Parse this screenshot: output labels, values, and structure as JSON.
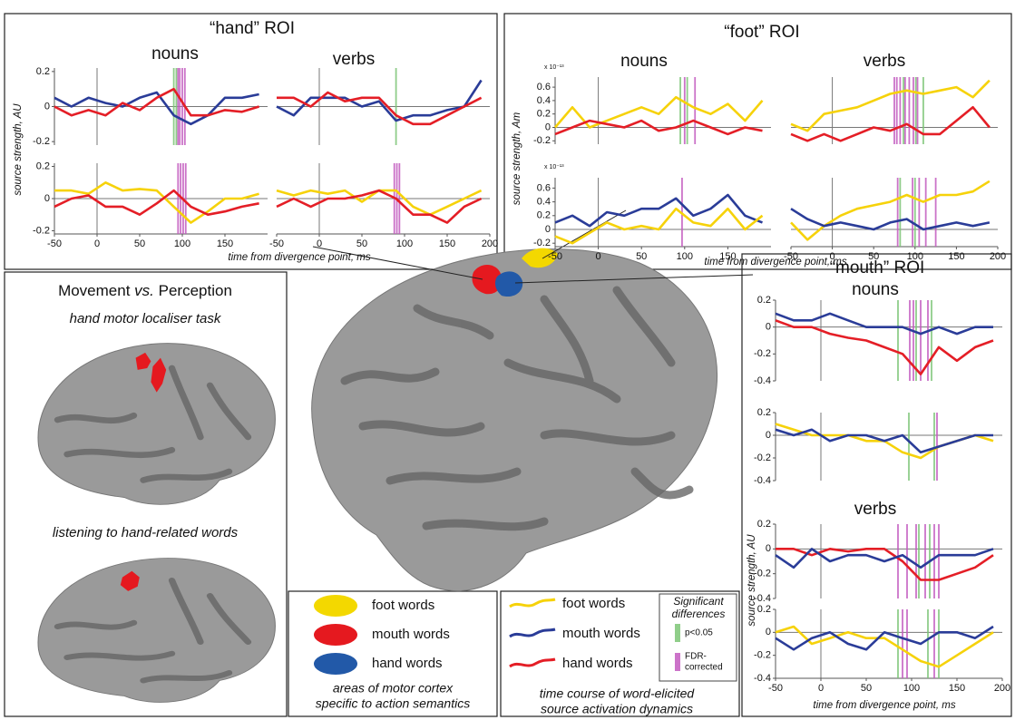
{
  "hand_panel": {
    "title": "“hand” ROI",
    "nouns": "nouns",
    "verbs": "verbs",
    "y_label": "source strength, AU",
    "x_label": "time from divergence point, ms"
  },
  "foot_panel": {
    "title": "“foot” ROI",
    "nouns": "nouns",
    "verbs": "verbs",
    "y_label": "source strength, Am",
    "x_label": "time from divergence point, ms",
    "scale": "x 10⁻¹³"
  },
  "mouth_panel": {
    "title": "“mouth” ROI",
    "nouns": "nouns",
    "verbs": "verbs",
    "y_label": "source strength, AU",
    "x_label": "time from divergence point, ms"
  },
  "left_panel": {
    "title": [
      "Movement",
      "vs.",
      "Perception"
    ],
    "task1": "hand motor localiser task",
    "task2": "listening to hand-related words"
  },
  "legend_areas": {
    "items": [
      {
        "label": "foot words",
        "color": "#f3d800"
      },
      {
        "label": "mouth words",
        "color": "#e5191f"
      },
      {
        "label": "hand words",
        "color": "#2259a8"
      }
    ],
    "caption": [
      "areas of motor cortex",
      "specific to action semantics"
    ]
  },
  "legend_lines": {
    "items": [
      {
        "label": "foot words",
        "color": "#f6d20a"
      },
      {
        "label": "mouth words",
        "color": "#2a3c98"
      },
      {
        "label": "hand words",
        "color": "#e41e26"
      }
    ],
    "caption": [
      "time course of word-elicited",
      "source activation dynamics"
    ]
  },
  "significance": {
    "title": [
      "Significant",
      "differences"
    ],
    "items": [
      {
        "label": [
          "p<0.05"
        ],
        "color": "#7cc576"
      },
      {
        "label": [
          "FDR-",
          "corrected"
        ],
        "color": "#c35bbf"
      }
    ]
  },
  "chart_data": [
    {
      "type": "line",
      "x": [
        -50,
        -30,
        -10,
        10,
        30,
        50,
        70,
        90,
        110,
        130,
        150,
        170,
        190
      ],
      "xlim": [
        -50,
        200
      ],
      "ylim": [
        -0.22,
        0.22
      ],
      "yticks": [
        -0.2,
        0,
        0.2
      ],
      "series": [
        {
          "color": "#2a3c98",
          "values": [
            0.05,
            0.0,
            0.05,
            0.02,
            0.0,
            0.05,
            0.08,
            -0.05,
            -0.1,
            -0.05,
            0.05,
            0.05,
            0.07
          ]
        },
        {
          "color": "#e41e26",
          "values": [
            0.0,
            -0.05,
            -0.02,
            -0.05,
            0.02,
            -0.02,
            0.05,
            0.1,
            -0.05,
            -0.05,
            -0.02,
            -0.03,
            0.0
          ]
        }
      ],
      "sig_p05": [
        90,
        93
      ],
      "sig_fdr": [
        95,
        97,
        100,
        103
      ]
    },
    {
      "type": "line",
      "x": [
        -50,
        -30,
        -10,
        10,
        30,
        50,
        70,
        90,
        110,
        130,
        150,
        170,
        190
      ],
      "xlim": [
        -50,
        200
      ],
      "ylim": [
        -0.22,
        0.22
      ],
      "series": [
        {
          "color": "#2a3c98",
          "values": [
            0.0,
            -0.05,
            0.05,
            0.05,
            0.05,
            0.0,
            0.03,
            -0.08,
            -0.05,
            -0.05,
            -0.02,
            0.0,
            0.15
          ]
        },
        {
          "color": "#e41e26",
          "values": [
            0.05,
            0.05,
            0.0,
            0.08,
            0.03,
            0.05,
            0.05,
            -0.05,
            -0.1,
            -0.1,
            -0.05,
            0.0,
            0.05
          ]
        }
      ],
      "sig_p05": [
        90
      ],
      "sig_fdr": []
    },
    {
      "type": "line",
      "x": [
        -50,
        -30,
        -10,
        10,
        30,
        50,
        70,
        90,
        110,
        130,
        150,
        170,
        190
      ],
      "xlim": [
        -50,
        200
      ],
      "ylim": [
        -0.22,
        0.22
      ],
      "yticks": [
        -0.2,
        0,
        0.2
      ],
      "xticks": [
        -50,
        0,
        50,
        100,
        150
      ],
      "series": [
        {
          "color": "#f6d20a",
          "values": [
            0.05,
            0.05,
            0.03,
            0.1,
            0.05,
            0.06,
            0.05,
            -0.05,
            -0.15,
            -0.08,
            0.0,
            0.0,
            0.03
          ]
        },
        {
          "color": "#e41e26",
          "values": [
            -0.05,
            0.0,
            0.02,
            -0.05,
            -0.05,
            -0.1,
            -0.03,
            0.05,
            -0.05,
            -0.1,
            -0.08,
            -0.05,
            -0.03
          ]
        }
      ],
      "sig_p05": [],
      "sig_fdr": [
        95,
        98,
        101,
        104
      ]
    },
    {
      "type": "line",
      "x": [
        -50,
        -30,
        -10,
        10,
        30,
        50,
        70,
        90,
        110,
        130,
        150,
        170,
        190
      ],
      "xlim": [
        -50,
        200
      ],
      "ylim": [
        -0.22,
        0.22
      ],
      "xticks": [
        -50,
        0,
        50,
        100,
        150,
        200
      ],
      "series": [
        {
          "color": "#f6d20a",
          "values": [
            0.05,
            0.02,
            0.05,
            0.03,
            0.05,
            -0.02,
            0.05,
            0.05,
            -0.05,
            -0.1,
            -0.05,
            0.0,
            0.05
          ]
        },
        {
          "color": "#e41e26",
          "values": [
            -0.05,
            0.0,
            -0.05,
            0.0,
            0.0,
            0.02,
            0.05,
            0.0,
            -0.1,
            -0.1,
            -0.15,
            -0.05,
            0.0
          ]
        }
      ],
      "sig_p05": [],
      "sig_fdr": [
        88,
        91,
        94
      ]
    },
    {
      "type": "line",
      "x": [
        -50,
        -30,
        -10,
        10,
        30,
        50,
        70,
        90,
        110,
        130,
        150,
        170,
        190
      ],
      "xlim": [
        -50,
        200
      ],
      "ylim": [
        -0.25,
        0.75
      ],
      "yticks": [
        -0.2,
        0,
        0.2,
        0.4,
        0.6
      ],
      "series": [
        {
          "color": "#f6d20a",
          "values": [
            0.0,
            0.3,
            0.0,
            0.1,
            0.2,
            0.3,
            0.2,
            0.45,
            0.3,
            0.2,
            0.35,
            0.1,
            0.4
          ]
        },
        {
          "color": "#e41e26",
          "values": [
            -0.1,
            0.0,
            0.1,
            0.05,
            0.0,
            0.1,
            -0.05,
            0.0,
            0.1,
            0.0,
            -0.1,
            0.0,
            -0.05
          ]
        }
      ],
      "sig_p05": [
        95,
        103
      ],
      "sig_fdr": [
        100,
        112
      ]
    },
    {
      "type": "line",
      "x": [
        -50,
        -30,
        -10,
        10,
        30,
        50,
        70,
        90,
        110,
        130,
        150,
        170,
        190
      ],
      "xlim": [
        -50,
        200
      ],
      "ylim": [
        -0.25,
        0.75
      ],
      "series": [
        {
          "color": "#f6d20a",
          "values": [
            0.05,
            -0.05,
            0.2,
            0.25,
            0.3,
            0.4,
            0.5,
            0.55,
            0.5,
            0.55,
            0.6,
            0.45,
            0.7
          ]
        },
        {
          "color": "#e41e26",
          "values": [
            -0.1,
            -0.2,
            -0.1,
            -0.2,
            -0.1,
            0.0,
            -0.05,
            0.05,
            -0.1,
            -0.1,
            0.1,
            0.3,
            0.0
          ]
        }
      ],
      "sig_p05": [
        86,
        101,
        110
      ],
      "sig_fdr": [
        75,
        78,
        82,
        88,
        93,
        98,
        103
      ]
    },
    {
      "type": "line",
      "x": [
        -50,
        -30,
        -10,
        10,
        30,
        50,
        70,
        90,
        110,
        130,
        150,
        170,
        190
      ],
      "xlim": [
        -50,
        200
      ],
      "ylim": [
        -0.25,
        0.75
      ],
      "yticks": [
        -0.2,
        0,
        0.2,
        0.4,
        0.6
      ],
      "xticks": [
        -50,
        0,
        50,
        100,
        150
      ],
      "series": [
        {
          "color": "#2a3c98",
          "values": [
            0.1,
            0.2,
            0.05,
            0.25,
            0.2,
            0.3,
            0.3,
            0.45,
            0.2,
            0.3,
            0.5,
            0.2,
            0.1
          ]
        },
        {
          "color": "#f6d20a",
          "values": [
            -0.1,
            -0.2,
            -0.05,
            0.1,
            0.0,
            0.05,
            0.0,
            0.3,
            0.1,
            0.05,
            0.3,
            0.0,
            0.2
          ]
        }
      ],
      "sig_p05": [],
      "sig_fdr": [
        97
      ]
    },
    {
      "type": "line",
      "x": [
        -50,
        -30,
        -10,
        10,
        30,
        50,
        70,
        90,
        110,
        130,
        150,
        170,
        190
      ],
      "xlim": [
        -50,
        200
      ],
      "ylim": [
        -0.25,
        0.75
      ],
      "xticks": [
        -50,
        0,
        50,
        100,
        150,
        200
      ],
      "series": [
        {
          "color": "#f6d20a",
          "values": [
            0.1,
            -0.15,
            0.05,
            0.2,
            0.3,
            0.35,
            0.4,
            0.5,
            0.4,
            0.5,
            0.5,
            0.55,
            0.7
          ]
        },
        {
          "color": "#2a3c98",
          "values": [
            0.3,
            0.15,
            0.05,
            0.1,
            0.05,
            0.0,
            0.1,
            0.15,
            0.0,
            0.05,
            0.1,
            0.05,
            0.1
          ]
        }
      ],
      "sig_p05": [
        82,
        100
      ],
      "sig_fdr": [
        79,
        97,
        105,
        113,
        125
      ]
    },
    {
      "type": "line",
      "x": [
        -50,
        -30,
        -10,
        10,
        30,
        50,
        70,
        90,
        110,
        130,
        150,
        170,
        190
      ],
      "xlim": [
        -50,
        200
      ],
      "ylim": [
        -0.4,
        0.2
      ],
      "yticks": [
        -0.4,
        -0.2,
        0,
        0.2
      ],
      "series": [
        {
          "color": "#2a3c98",
          "values": [
            0.1,
            0.05,
            0.05,
            0.1,
            0.05,
            0.0,
            0.0,
            0.0,
            -0.05,
            0.0,
            -0.05,
            0.0,
            0.0
          ]
        },
        {
          "color": "#e41e26",
          "values": [
            0.05,
            0.0,
            0.0,
            -0.05,
            -0.08,
            -0.1,
            -0.15,
            -0.2,
            -0.35,
            -0.15,
            -0.25,
            -0.15,
            -0.1
          ]
        }
      ],
      "sig_p05": [
        85,
        105,
        122
      ],
      "sig_fdr": [
        98,
        102,
        110,
        118
      ]
    },
    {
      "type": "line",
      "x": [
        -50,
        -30,
        -10,
        10,
        30,
        50,
        70,
        90,
        110,
        130,
        150,
        170,
        190
      ],
      "xlim": [
        -50,
        200
      ],
      "ylim": [
        -0.4,
        0.2
      ],
      "yticks": [
        -0.4,
        -0.2,
        0,
        0.2
      ],
      "series": [
        {
          "color": "#f6d20a",
          "values": [
            0.1,
            0.05,
            0.0,
            0.0,
            0.0,
            -0.05,
            -0.05,
            -0.15,
            -0.2,
            -0.1,
            -0.05,
            0.0,
            -0.05
          ]
        },
        {
          "color": "#2a3c98",
          "values": [
            0.05,
            0.0,
            0.05,
            -0.05,
            0.0,
            0.0,
            -0.05,
            0.0,
            -0.15,
            -0.1,
            -0.05,
            0.0,
            0.0
          ]
        }
      ],
      "sig_p05": [
        97,
        125
      ],
      "sig_fdr": [
        128
      ]
    },
    {
      "type": "line",
      "x": [
        -50,
        -30,
        -10,
        10,
        30,
        50,
        70,
        90,
        110,
        130,
        150,
        170,
        190
      ],
      "xlim": [
        -50,
        200
      ],
      "ylim": [
        -0.4,
        0.2
      ],
      "yticks": [
        -0.4,
        -0.2,
        0,
        0.2
      ],
      "series": [
        {
          "color": "#e41e26",
          "values": [
            0.0,
            0.0,
            -0.05,
            0.0,
            -0.02,
            0.0,
            0.0,
            -0.1,
            -0.25,
            -0.25,
            -0.2,
            -0.15,
            -0.05
          ]
        },
        {
          "color": "#2a3c98",
          "values": [
            -0.05,
            -0.15,
            0.0,
            -0.1,
            -0.05,
            -0.05,
            -0.1,
            -0.05,
            -0.15,
            -0.05,
            -0.05,
            -0.05,
            0.0
          ]
        }
      ],
      "sig_p05": [
        108,
        120
      ],
      "sig_fdr": [
        85,
        95,
        105,
        115,
        125,
        130
      ]
    },
    {
      "type": "line",
      "x": [
        -50,
        -30,
        -10,
        10,
        30,
        50,
        70,
        90,
        110,
        130,
        150,
        170,
        190
      ],
      "xlim": [
        -50,
        200
      ],
      "ylim": [
        -0.4,
        0.2
      ],
      "yticks": [
        -0.4,
        -0.2,
        0,
        0.2
      ],
      "xticks": [
        -50,
        0,
        50,
        100,
        150,
        200
      ],
      "series": [
        {
          "color": "#f6d20a",
          "values": [
            0.0,
            0.05,
            -0.1,
            -0.05,
            0.0,
            -0.05,
            -0.05,
            -0.15,
            -0.25,
            -0.3,
            -0.2,
            -0.1,
            0.0
          ]
        },
        {
          "color": "#2a3c98",
          "values": [
            -0.05,
            -0.15,
            -0.05,
            0.0,
            -0.1,
            -0.15,
            0.0,
            -0.05,
            -0.1,
            0.0,
            0.0,
            -0.05,
            0.05
          ]
        }
      ],
      "sig_p05": [
        85,
        118,
        130
      ],
      "sig_fdr": [
        90,
        95,
        125
      ]
    }
  ]
}
